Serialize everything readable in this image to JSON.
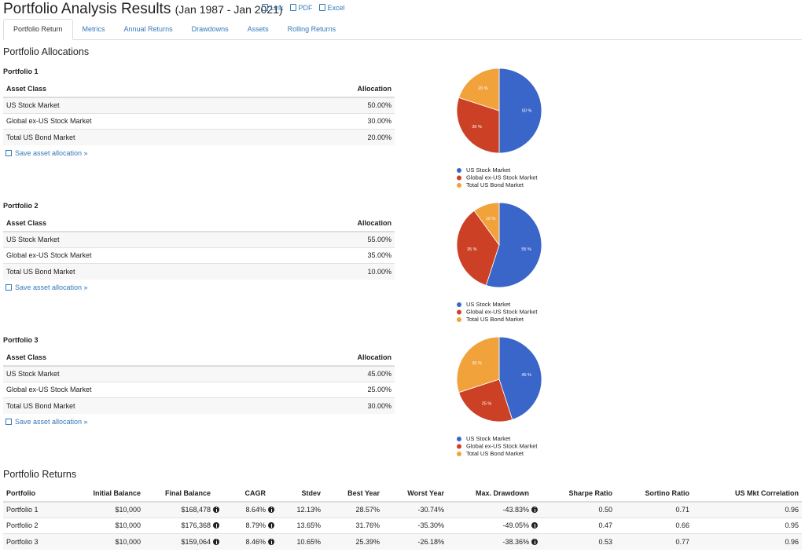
{
  "header": {
    "title": "Portfolio Analysis Results",
    "period": "(Jan 1987 - Jan 2021)",
    "links": [
      "Link",
      "PDF",
      "Excel"
    ]
  },
  "tabs": [
    "Portfolio Return",
    "Metrics",
    "Annual Returns",
    "Drawdowns",
    "Assets",
    "Rolling Returns"
  ],
  "allocations": {
    "title": "Portfolio Allocations",
    "columns": [
      "Asset Class",
      "Allocation"
    ],
    "save_link": "Save asset allocation »",
    "portfolios": [
      {
        "name": "Portfolio 1",
        "rows": [
          [
            "US Stock Market",
            "50.00%"
          ],
          [
            "Global ex-US Stock Market",
            "30.00%"
          ],
          [
            "Total US Bond Market",
            "20.00%"
          ]
        ]
      },
      {
        "name": "Portfolio 2",
        "rows": [
          [
            "US Stock Market",
            "55.00%"
          ],
          [
            "Global ex-US Stock Market",
            "35.00%"
          ],
          [
            "Total US Bond Market",
            "10.00%"
          ]
        ]
      },
      {
        "name": "Portfolio 3",
        "rows": [
          [
            "US Stock Market",
            "45.00%"
          ],
          [
            "Global ex-US Stock Market",
            "25.00%"
          ],
          [
            "Total US Bond Market",
            "30.00%"
          ]
        ]
      }
    ]
  },
  "chart_data": [
    {
      "type": "pie",
      "categories": [
        "US Stock Market",
        "Global ex-US Stock Market",
        "Total US Bond Market"
      ],
      "values": [
        50,
        30,
        20
      ],
      "value_labels": [
        "50 %",
        "30 %",
        "20 %"
      ],
      "colors": [
        "#3a66c9",
        "#cc4125",
        "#f1a23a"
      ]
    },
    {
      "type": "pie",
      "categories": [
        "US Stock Market",
        "Global ex-US Stock Market",
        "Total US Bond Market"
      ],
      "values": [
        55,
        35,
        10
      ],
      "value_labels": [
        "55 %",
        "35 %",
        "10 %"
      ],
      "colors": [
        "#3a66c9",
        "#cc4125",
        "#f1a23a"
      ]
    },
    {
      "type": "pie",
      "categories": [
        "US Stock Market",
        "Global ex-US Stock Market",
        "Total US Bond Market"
      ],
      "values": [
        45,
        25,
        30
      ],
      "value_labels": [
        "45 %",
        "25 %",
        "30 %"
      ],
      "colors": [
        "#3a66c9",
        "#cc4125",
        "#f1a23a"
      ]
    }
  ],
  "returns": {
    "title": "Portfolio Returns",
    "columns": [
      "Portfolio",
      "Initial Balance",
      "Final Balance",
      "CAGR",
      "Stdev",
      "Best Year",
      "Worst Year",
      "Max. Drawdown",
      "Sharpe Ratio",
      "Sortino Ratio",
      "US Mkt Correlation"
    ],
    "rows": [
      [
        "Portfolio 1",
        "$10,000",
        "$168,478",
        "8.64%",
        "12.13%",
        "28.57%",
        "-30.74%",
        "-43.83%",
        "0.50",
        "0.71",
        "0.96"
      ],
      [
        "Portfolio 2",
        "$10,000",
        "$176,368",
        "8.79%",
        "13.65%",
        "31.76%",
        "-35.30%",
        "-49.05%",
        "0.47",
        "0.66",
        "0.95"
      ],
      [
        "Portfolio 3",
        "$10,000",
        "$159,064",
        "8.46%",
        "10.65%",
        "25.39%",
        "-26.18%",
        "-38.36%",
        "0.53",
        "0.77",
        "0.96"
      ]
    ]
  }
}
